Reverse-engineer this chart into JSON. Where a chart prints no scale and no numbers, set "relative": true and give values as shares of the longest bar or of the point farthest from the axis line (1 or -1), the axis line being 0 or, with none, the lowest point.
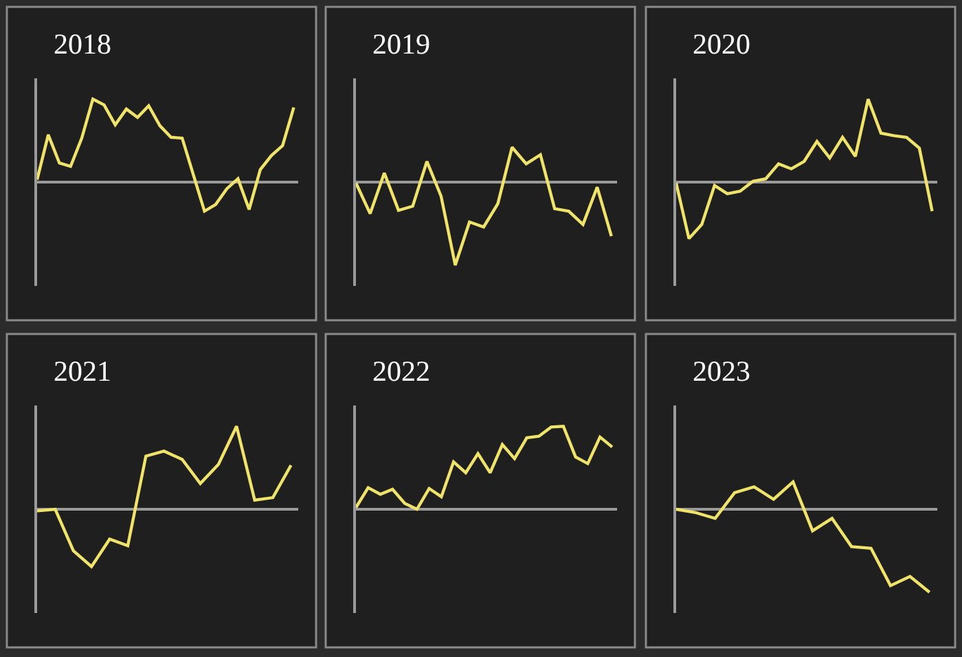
{
  "chart_data": [
    {
      "type": "line",
      "title": "2018",
      "relative": true,
      "color": "#f0e36a",
      "categories": [
        null,
        null,
        null,
        null,
        null,
        null,
        null,
        null,
        null,
        null,
        null,
        null,
        null,
        null,
        null,
        null,
        null,
        null,
        null,
        null,
        null,
        null,
        null,
        null
      ],
      "values": [
        0.03,
        0.57,
        0.23,
        0.19,
        0.53,
        1,
        0.93,
        0.69,
        0.88,
        0.78,
        0.92,
        0.68,
        0.54,
        0.53,
        0.09,
        -0.35,
        -0.27,
        -0.08,
        0.04,
        -0.33,
        0.15,
        0.32,
        0.44,
        0.9
      ]
    },
    {
      "type": "line",
      "title": "2019",
      "relative": true,
      "color": "#f0e36a",
      "categories": [
        null,
        null,
        null,
        null,
        null,
        null,
        null,
        null,
        null,
        null,
        null,
        null,
        null,
        null,
        null,
        null,
        null,
        null,
        null
      ],
      "values": [
        -0.01,
        -0.38,
        0.11,
        -0.34,
        -0.29,
        0.25,
        -0.17,
        -1,
        -0.48,
        -0.54,
        -0.26,
        0.42,
        0.22,
        0.33,
        -0.32,
        -0.35,
        -0.51,
        -0.06,
        -0.65
      ]
    },
    {
      "type": "line",
      "title": "2020",
      "relative": true,
      "color": "#f0e36a",
      "categories": [
        null,
        null,
        null,
        null,
        null,
        null,
        null,
        null,
        null,
        null,
        null,
        null,
        null,
        null,
        null,
        null,
        null,
        null,
        null,
        null,
        null
      ],
      "values": [
        -0.01,
        -0.68,
        -0.51,
        -0.04,
        -0.14,
        -0.11,
        0.01,
        0.04,
        0.22,
        0.16,
        0.25,
        0.49,
        0.29,
        0.54,
        0.31,
        1,
        0.59,
        0.56,
        0.54,
        0.41,
        -0.35
      ]
    },
    {
      "type": "line",
      "title": "2021",
      "relative": true,
      "color": "#f0e36a",
      "categories": [
        null,
        null,
        null,
        null,
        null,
        null,
        null,
        null,
        null,
        null,
        null,
        null,
        null,
        null,
        null
      ],
      "values": [
        -0.02,
        0,
        -0.5,
        -0.69,
        -0.36,
        -0.44,
        0.64,
        0.7,
        0.6,
        0.31,
        0.54,
        1,
        0.11,
        0.14,
        0.53
      ]
    },
    {
      "type": "line",
      "title": "2022",
      "relative": true,
      "color": "#f0e36a",
      "categories": [
        null,
        null,
        null,
        null,
        null,
        null,
        null,
        null,
        null,
        null,
        null,
        null,
        null,
        null,
        null,
        null,
        null,
        null,
        null,
        null,
        null,
        null
      ],
      "values": [
        0.02,
        0.26,
        0.18,
        0.24,
        0.07,
        0,
        0.25,
        0.15,
        0.57,
        0.44,
        0.67,
        0.44,
        0.78,
        0.61,
        0.86,
        0.88,
        0.99,
        1,
        0.63,
        0.55,
        0.87,
        0.75
      ]
    },
    {
      "type": "line",
      "title": "2023",
      "relative": true,
      "color": "#f0e36a",
      "categories": [
        null,
        null,
        null,
        null,
        null,
        null,
        null,
        null,
        null,
        null,
        null,
        null,
        null,
        null
      ],
      "values": [
        0,
        -0.04,
        -0.11,
        0.2,
        0.27,
        0.12,
        0.33,
        -0.26,
        -0.11,
        -0.45,
        -0.47,
        -0.92,
        -0.81,
        -1
      ]
    }
  ]
}
